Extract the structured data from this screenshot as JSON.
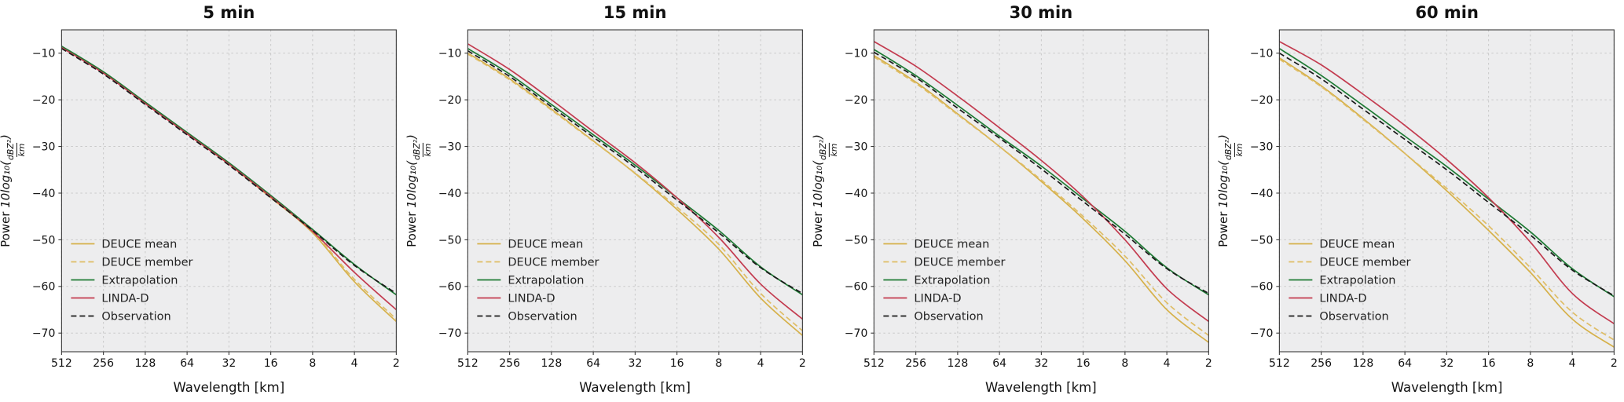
{
  "figure": {
    "background": "#ffffff",
    "plot_background": "#ededee",
    "grid_color": "#c9c9c9",
    "spine_color": "#3a3a3a",
    "text_color": "#111111"
  },
  "ylabel_parts": {
    "prefix": "Power ",
    "math": "10log₁₀(",
    "frac_num": "dBZ²",
    "frac_den": "km",
    "close": ")"
  },
  "chart_data": [
    {
      "type": "line",
      "title": "5 min",
      "xlabel": "Wavelength [km]",
      "ylabel": "Power 10log10(dBZ²/km)",
      "x": [
        512,
        256,
        128,
        64,
        32,
        16,
        8,
        4,
        2
      ],
      "x_scale": "log2-descending",
      "ylim": [
        -74,
        -5
      ],
      "yticks": [
        -10,
        -20,
        -30,
        -40,
        -50,
        -60,
        -70
      ],
      "grid": "dashed",
      "legend_position": "lower-left",
      "series": [
        {
          "name": "DEUCE mean",
          "color": "#d6b14a",
          "line_style": "solid",
          "values": [
            -8.6,
            -14.2,
            -20.7,
            -27.2,
            -33.8,
            -41.0,
            -48.5,
            -59.0,
            -67.5
          ]
        },
        {
          "name": "DEUCE member",
          "color": "#dfbd66",
          "line_style": "dashed",
          "values": [
            -8.7,
            -14.3,
            -20.8,
            -27.3,
            -33.9,
            -41.0,
            -48.3,
            -58.5,
            -67.0
          ]
        },
        {
          "name": "Extrapolation",
          "color": "#1e7a34",
          "line_style": "solid",
          "values": [
            -8.5,
            -14.0,
            -20.5,
            -27.0,
            -33.5,
            -40.5,
            -47.8,
            -55.3,
            -61.8
          ]
        },
        {
          "name": "LINDA-D",
          "color": "#c33b4f",
          "line_style": "solid",
          "values": [
            -8.8,
            -14.3,
            -20.8,
            -27.3,
            -33.8,
            -40.8,
            -48.2,
            -57.0,
            -65.0
          ]
        },
        {
          "name": "Observation",
          "color": "#1a1a1a",
          "line_style": "dashed",
          "values": [
            -9.0,
            -14.5,
            -21.0,
            -27.5,
            -34.0,
            -41.0,
            -48.0,
            -55.5,
            -61.5
          ]
        }
      ]
    },
    {
      "type": "line",
      "title": "15 min",
      "xlabel": "Wavelength [km]",
      "ylabel": "Power 10log10(dBZ²/km)",
      "x": [
        512,
        256,
        128,
        64,
        32,
        16,
        8,
        4,
        2
      ],
      "x_scale": "log2-descending",
      "ylim": [
        -74,
        -5
      ],
      "yticks": [
        -10,
        -20,
        -30,
        -40,
        -50,
        -60,
        -70
      ],
      "grid": "dashed",
      "legend_position": "lower-left",
      "series": [
        {
          "name": "DEUCE mean",
          "color": "#d6b14a",
          "line_style": "solid",
          "values": [
            -10.0,
            -15.5,
            -22.0,
            -28.8,
            -35.8,
            -43.5,
            -52.0,
            -62.5,
            -70.5
          ]
        },
        {
          "name": "DEUCE member",
          "color": "#dfbd66",
          "line_style": "dashed",
          "values": [
            -10.2,
            -15.7,
            -22.2,
            -28.9,
            -35.7,
            -43.0,
            -51.0,
            -61.5,
            -69.5
          ]
        },
        {
          "name": "Extrapolation",
          "color": "#1e7a34",
          "line_style": "solid",
          "values": [
            -9.0,
            -14.5,
            -21.0,
            -27.5,
            -34.0,
            -41.0,
            -48.0,
            -55.8,
            -61.8
          ]
        },
        {
          "name": "LINDA-D",
          "color": "#c33b4f",
          "line_style": "solid",
          "values": [
            -8.0,
            -13.5,
            -20.0,
            -26.8,
            -33.5,
            -41.0,
            -49.5,
            -59.5,
            -67.0
          ]
        },
        {
          "name": "Observation",
          "color": "#1a1a1a",
          "line_style": "dashed",
          "values": [
            -9.5,
            -15.0,
            -21.5,
            -28.0,
            -34.5,
            -41.5,
            -48.5,
            -56.0,
            -61.5
          ]
        }
      ]
    },
    {
      "type": "line",
      "title": "30 min",
      "xlabel": "Wavelength [km]",
      "ylabel": "Power 10log10(dBZ²/km)",
      "x": [
        512,
        256,
        128,
        64,
        32,
        16,
        8,
        4,
        2
      ],
      "x_scale": "log2-descending",
      "ylim": [
        -74,
        -5
      ],
      "yticks": [
        -10,
        -20,
        -30,
        -40,
        -50,
        -60,
        -70
      ],
      "grid": "dashed",
      "legend_position": "lower-left",
      "series": [
        {
          "name": "DEUCE mean",
          "color": "#d6b14a",
          "line_style": "solid",
          "values": [
            -10.5,
            -16.2,
            -23.0,
            -30.0,
            -37.5,
            -45.5,
            -54.5,
            -65.0,
            -72.0
          ]
        },
        {
          "name": "DEUCE member",
          "color": "#dfbd66",
          "line_style": "dashed",
          "values": [
            -10.8,
            -16.5,
            -23.2,
            -30.0,
            -37.2,
            -45.0,
            -53.5,
            -63.5,
            -70.5
          ]
        },
        {
          "name": "Extrapolation",
          "color": "#1e7a34",
          "line_style": "solid",
          "values": [
            -9.2,
            -14.8,
            -21.2,
            -27.8,
            -34.2,
            -41.2,
            -48.2,
            -56.0,
            -61.8
          ]
        },
        {
          "name": "LINDA-D",
          "color": "#c33b4f",
          "line_style": "solid",
          "values": [
            -7.5,
            -12.8,
            -19.2,
            -26.0,
            -33.0,
            -40.8,
            -50.0,
            -60.5,
            -67.5
          ]
        },
        {
          "name": "Observation",
          "color": "#1a1a1a",
          "line_style": "dashed",
          "values": [
            -9.8,
            -15.2,
            -21.8,
            -28.2,
            -34.8,
            -41.8,
            -48.8,
            -56.2,
            -61.5
          ]
        }
      ]
    },
    {
      "type": "line",
      "title": "60 min",
      "xlabel": "Wavelength [km]",
      "ylabel": "Power 10log10(dBZ²/km)",
      "x": [
        512,
        256,
        128,
        64,
        32,
        16,
        8,
        4,
        2
      ],
      "x_scale": "log2-descending",
      "ylim": [
        -74,
        -5
      ],
      "yticks": [
        -10,
        -20,
        -30,
        -40,
        -50,
        -60,
        -70
      ],
      "grid": "dashed",
      "legend_position": "lower-left",
      "series": [
        {
          "name": "DEUCE mean",
          "color": "#d6b14a",
          "line_style": "solid",
          "values": [
            -11.0,
            -17.0,
            -24.0,
            -31.5,
            -39.5,
            -48.0,
            -57.0,
            -67.0,
            -73.0
          ]
        },
        {
          "name": "DEUCE member",
          "color": "#dfbd66",
          "line_style": "dashed",
          "values": [
            -11.3,
            -17.2,
            -24.2,
            -31.5,
            -39.0,
            -47.0,
            -56.0,
            -65.5,
            -71.5
          ]
        },
        {
          "name": "Extrapolation",
          "color": "#1e7a34",
          "line_style": "solid",
          "values": [
            -9.0,
            -14.8,
            -21.2,
            -27.8,
            -34.3,
            -41.3,
            -48.3,
            -56.2,
            -62.2
          ]
        },
        {
          "name": "LINDA-D",
          "color": "#c33b4f",
          "line_style": "solid",
          "values": [
            -7.5,
            -12.5,
            -18.8,
            -25.5,
            -32.8,
            -41.0,
            -50.5,
            -61.5,
            -68.0
          ]
        },
        {
          "name": "Observation",
          "color": "#1a1a1a",
          "line_style": "dashed",
          "values": [
            -10.0,
            -15.5,
            -22.0,
            -28.5,
            -35.0,
            -42.0,
            -49.0,
            -56.5,
            -62.0
          ]
        }
      ]
    }
  ]
}
